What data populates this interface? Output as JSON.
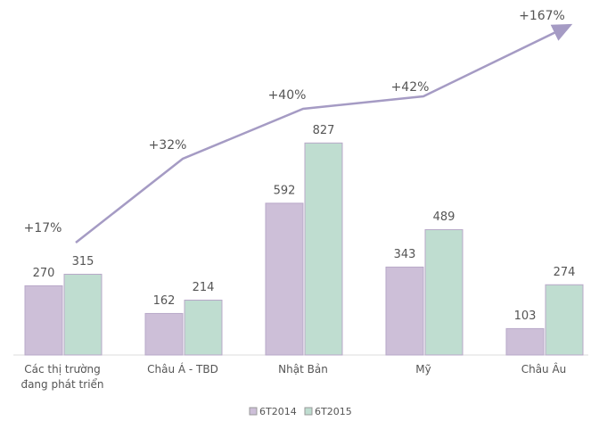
{
  "chart_data": {
    "type": "bar",
    "categories": [
      "Các thị trường đang phát triển",
      "Châu Á - TBD",
      "Nhật Bản",
      "Mỹ",
      "Châu Âu"
    ],
    "series": [
      {
        "name": "6T2014",
        "color": "#cdbfd8",
        "values": [
          270,
          162,
          592,
          343,
          103
        ]
      },
      {
        "name": "6T2015",
        "color": "#bfddd0",
        "values": [
          315,
          214,
          827,
          489,
          274
        ]
      }
    ],
    "ylim": [
      0,
      1350
    ],
    "annotations": [
      "+17%",
      "+32%",
      "+40%",
      "+42%",
      "+167%"
    ],
    "legend": "bottom"
  }
}
